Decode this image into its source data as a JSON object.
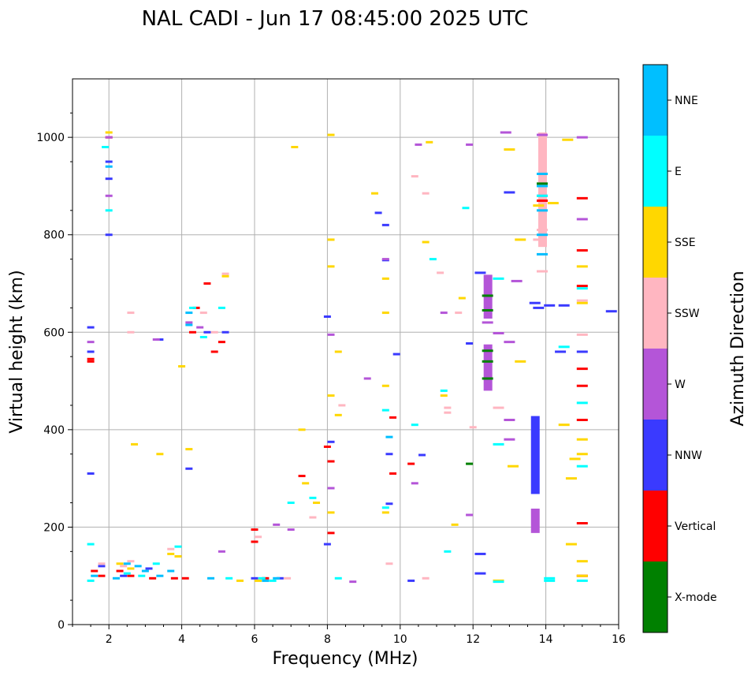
{
  "chart_data": {
    "type": "scatter",
    "title": "NAL CADI - Jun 17 08:45:00 2025 UTC",
    "xlabel": "Frequency (MHz)",
    "ylabel": "Virtual height (km)",
    "xlim": [
      1,
      16
    ],
    "ylim": [
      0,
      1120
    ],
    "xticks": [
      2,
      4,
      6,
      8,
      10,
      12,
      14,
      16
    ],
    "yticks": [
      0,
      200,
      400,
      600,
      800,
      1000
    ],
    "grid": true,
    "colorbar": {
      "label": "Azimuth Direction",
      "categories": [
        {
          "name": "X-mode",
          "color": "#008000"
        },
        {
          "name": "Vertical",
          "color": "#ff0000"
        },
        {
          "name": "NNW",
          "color": "#3a3aff"
        },
        {
          "name": "W",
          "color": "#b455d8"
        },
        {
          "name": "SSW",
          "color": "#ffb6c1"
        },
        {
          "name": "SSE",
          "color": "#ffd700"
        },
        {
          "name": "E",
          "color": "#00ffff"
        },
        {
          "name": "NNE",
          "color": "#00bfff"
        }
      ]
    },
    "series": [
      {
        "name": "X-mode",
        "points": [
          [
            12.4,
            562
          ],
          [
            12.4,
            540
          ],
          [
            12.4,
            505
          ],
          [
            11.9,
            330
          ],
          [
            12.4,
            675
          ],
          [
            13.9,
            905
          ],
          [
            12.4,
            645
          ]
        ]
      },
      {
        "name": "Vertical",
        "points": [
          [
            1.5,
            545
          ],
          [
            1.5,
            540
          ],
          [
            1.6,
            110
          ],
          [
            1.8,
            100
          ],
          [
            2.0,
            1000
          ],
          [
            2.3,
            110
          ],
          [
            2.6,
            100
          ],
          [
            3.2,
            95
          ],
          [
            3.8,
            95
          ],
          [
            4.1,
            95
          ],
          [
            4.3,
            600
          ],
          [
            4.4,
            650
          ],
          [
            4.7,
            700
          ],
          [
            4.9,
            560
          ],
          [
            5.1,
            580
          ],
          [
            6.0,
            170
          ],
          [
            6.0,
            195
          ],
          [
            6.3,
            95
          ],
          [
            7.3,
            305
          ],
          [
            8.0,
            365
          ],
          [
            8.1,
            335
          ],
          [
            8.1,
            188
          ],
          [
            9.8,
            425
          ],
          [
            9.8,
            310
          ],
          [
            10.3,
            330
          ],
          [
            13.9,
            870
          ],
          [
            15.0,
            875
          ],
          [
            15.0,
            768
          ],
          [
            15.0,
            695
          ],
          [
            15.0,
            525
          ],
          [
            15.0,
            490
          ],
          [
            15.0,
            420
          ],
          [
            15.0,
            208
          ],
          [
            15.0,
            100
          ]
        ]
      },
      {
        "name": "NNW",
        "points": [
          [
            1.5,
            610
          ],
          [
            1.5,
            560
          ],
          [
            1.5,
            310
          ],
          [
            2.0,
            950
          ],
          [
            2.0,
            915
          ],
          [
            2.0,
            800
          ],
          [
            1.8,
            120
          ],
          [
            2.4,
            100
          ],
          [
            3.1,
            115
          ],
          [
            3.4,
            585
          ],
          [
            4.2,
            320
          ],
          [
            4.7,
            600
          ],
          [
            5.2,
            600
          ],
          [
            6.0,
            95
          ],
          [
            6.7,
            95
          ],
          [
            8.0,
            632
          ],
          [
            8.1,
            375
          ],
          [
            8.0,
            165
          ],
          [
            9.4,
            845
          ],
          [
            9.6,
            820
          ],
          [
            9.6,
            748
          ],
          [
            9.9,
            555
          ],
          [
            9.7,
            350
          ],
          [
            9.7,
            248
          ],
          [
            10.3,
            90
          ],
          [
            10.6,
            348
          ],
          [
            12.2,
            722
          ],
          [
            11.9,
            577
          ],
          [
            12.2,
            145
          ],
          [
            12.2,
            105
          ],
          [
            13.0,
            887
          ],
          [
            13.7,
            660
          ],
          [
            13.8,
            650
          ],
          [
            14.1,
            655
          ],
          [
            14.5,
            655
          ],
          [
            14.4,
            560
          ],
          [
            15.0,
            560
          ],
          [
            15.8,
            643
          ]
        ]
      },
      {
        "name": "W",
        "points": [
          [
            1.5,
            580
          ],
          [
            2.0,
            1000
          ],
          [
            2.0,
            880
          ],
          [
            3.3,
            585
          ],
          [
            4.2,
            620
          ],
          [
            4.5,
            610
          ],
          [
            5.1,
            150
          ],
          [
            6.6,
            205
          ],
          [
            7.0,
            195
          ],
          [
            8.1,
            595
          ],
          [
            8.1,
            280
          ],
          [
            8.7,
            88
          ],
          [
            9.1,
            505
          ],
          [
            9.6,
            750
          ],
          [
            10.4,
            290
          ],
          [
            10.5,
            985
          ],
          [
            11.2,
            640
          ],
          [
            11.9,
            985
          ],
          [
            11.9,
            225
          ],
          [
            12.4,
            620
          ],
          [
            12.7,
            598
          ],
          [
            12.9,
            1010
          ],
          [
            13.0,
            580
          ],
          [
            13.0,
            420
          ],
          [
            13.0,
            380
          ],
          [
            13.2,
            705
          ],
          [
            13.9,
            1005
          ],
          [
            13.9,
            880
          ],
          [
            15.0,
            1000
          ],
          [
            15.0,
            832
          ]
        ]
      },
      {
        "name": "SSW",
        "points": [
          [
            1.8,
            125
          ],
          [
            2.4,
            120
          ],
          [
            2.6,
            130
          ],
          [
            2.6,
            640
          ],
          [
            2.6,
            600
          ],
          [
            3.7,
            155
          ],
          [
            4.6,
            640
          ],
          [
            4.9,
            600
          ],
          [
            5.2,
            720
          ],
          [
            6.1,
            180
          ],
          [
            6.9,
            95
          ],
          [
            7.6,
            220
          ],
          [
            8.4,
            450
          ],
          [
            9.7,
            125
          ],
          [
            10.4,
            920
          ],
          [
            10.7,
            885
          ],
          [
            10.7,
            95
          ],
          [
            11.1,
            722
          ],
          [
            11.3,
            445
          ],
          [
            11.3,
            435
          ],
          [
            11.6,
            640
          ],
          [
            12.0,
            405
          ],
          [
            12.7,
            445
          ],
          [
            13.8,
            790
          ],
          [
            13.9,
            810
          ],
          [
            13.9,
            760
          ],
          [
            13.9,
            725
          ],
          [
            15.0,
            595
          ],
          [
            15.0,
            665
          ]
        ]
      },
      {
        "name": "SSE",
        "points": [
          [
            2.0,
            1010
          ],
          [
            2.3,
            125
          ],
          [
            2.6,
            115
          ],
          [
            2.7,
            370
          ],
          [
            3.4,
            350
          ],
          [
            3.7,
            145
          ],
          [
            3.9,
            140
          ],
          [
            4.0,
            530
          ],
          [
            4.2,
            360
          ],
          [
            5.2,
            715
          ],
          [
            5.6,
            90
          ],
          [
            6.1,
            90
          ],
          [
            7.1,
            980
          ],
          [
            7.3,
            400
          ],
          [
            7.4,
            290
          ],
          [
            7.7,
            250
          ],
          [
            8.1,
            1005
          ],
          [
            8.1,
            790
          ],
          [
            8.1,
            735
          ],
          [
            8.3,
            560
          ],
          [
            8.3,
            430
          ],
          [
            8.1,
            470
          ],
          [
            8.1,
            230
          ],
          [
            9.3,
            885
          ],
          [
            9.6,
            710
          ],
          [
            9.6,
            640
          ],
          [
            9.6,
            490
          ],
          [
            9.6,
            230
          ],
          [
            10.7,
            785
          ],
          [
            10.8,
            990
          ],
          [
            11.2,
            470
          ],
          [
            11.5,
            205
          ],
          [
            11.7,
            670
          ],
          [
            12.7,
            90
          ],
          [
            13.0,
            975
          ],
          [
            13.1,
            325
          ],
          [
            13.3,
            540
          ],
          [
            13.3,
            790
          ],
          [
            13.8,
            860
          ],
          [
            14.2,
            865
          ],
          [
            14.6,
            995
          ],
          [
            14.5,
            410
          ],
          [
            14.7,
            300
          ],
          [
            14.8,
            340
          ],
          [
            14.7,
            165
          ],
          [
            15.0,
            735
          ],
          [
            15.0,
            660
          ],
          [
            15.0,
            380
          ],
          [
            15.0,
            350
          ],
          [
            15.0,
            130
          ],
          [
            15.0,
            100
          ]
        ]
      },
      {
        "name": "E",
        "points": [
          [
            1.5,
            165
          ],
          [
            1.5,
            90
          ],
          [
            1.9,
            980
          ],
          [
            2.0,
            850
          ],
          [
            2.5,
            105
          ],
          [
            2.9,
            100
          ],
          [
            3.3,
            125
          ],
          [
            3.9,
            160
          ],
          [
            4.3,
            650
          ],
          [
            4.6,
            590
          ],
          [
            5.1,
            650
          ],
          [
            5.3,
            95
          ],
          [
            6.2,
            95
          ],
          [
            6.5,
            90
          ],
          [
            7.0,
            250
          ],
          [
            7.6,
            260
          ],
          [
            8.3,
            95
          ],
          [
            9.6,
            440
          ],
          [
            9.6,
            240
          ],
          [
            10.4,
            410
          ],
          [
            10.9,
            750
          ],
          [
            11.2,
            480
          ],
          [
            11.3,
            150
          ],
          [
            11.8,
            855
          ],
          [
            12.7,
            710
          ],
          [
            12.7,
            370
          ],
          [
            12.7,
            88
          ],
          [
            13.9,
            880
          ],
          [
            14.1,
            95
          ],
          [
            14.1,
            90
          ],
          [
            14.5,
            570
          ],
          [
            15.0,
            690
          ],
          [
            15.0,
            455
          ],
          [
            15.0,
            325
          ],
          [
            15.0,
            90
          ]
        ]
      },
      {
        "name": "NNE",
        "points": [
          [
            1.6,
            100
          ],
          [
            2.0,
            940
          ],
          [
            2.2,
            95
          ],
          [
            2.5,
            125
          ],
          [
            2.8,
            120
          ],
          [
            3.0,
            110
          ],
          [
            3.4,
            100
          ],
          [
            3.7,
            110
          ],
          [
            4.2,
            640
          ],
          [
            4.2,
            615
          ],
          [
            4.8,
            95
          ],
          [
            6.3,
            90
          ],
          [
            6.6,
            95
          ],
          [
            9.7,
            385
          ],
          [
            13.9,
            925
          ],
          [
            13.9,
            900
          ],
          [
            13.9,
            850
          ],
          [
            13.9,
            800
          ],
          [
            13.9,
            760
          ]
        ]
      }
    ],
    "vertical_bands": [
      {
        "name": "NNW",
        "x": 13.7,
        "y_range": [
          268,
          428
        ]
      },
      {
        "name": "W",
        "x": 13.7,
        "y_range": [
          188,
          238
        ]
      },
      {
        "name": "W",
        "x": 12.4,
        "y_range": [
          628,
          718
        ]
      },
      {
        "name": "W",
        "x": 12.4,
        "y_range": [
          480,
          575
        ]
      },
      {
        "name": "SSW",
        "x": 13.9,
        "y_range": [
          775,
          1010
        ]
      }
    ]
  }
}
